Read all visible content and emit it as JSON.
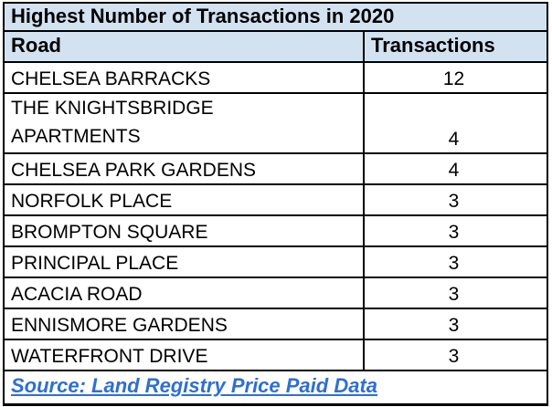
{
  "chart_data": {
    "type": "table",
    "title": "Highest Number of Transactions in 2020",
    "columns": [
      "Road",
      "Transactions"
    ],
    "rows": [
      [
        "CHELSEA BARRACKS",
        12
      ],
      [
        "THE KNIGHTSBRIDGE APARTMENTS",
        4
      ],
      [
        "CHELSEA PARK GARDENS",
        4
      ],
      [
        "NORFOLK PLACE",
        3
      ],
      [
        "BROMPTON SQUARE",
        3
      ],
      [
        "PRINCIPAL PLACE",
        3
      ],
      [
        "ACACIA ROAD",
        3
      ],
      [
        "ENNISMORE GARDENS",
        3
      ],
      [
        "WATERFRONT DRIVE",
        3
      ]
    ],
    "source": "Source: Land Registry Price Paid Data",
    "layout": {
      "header_fill": true,
      "grid": true,
      "value_alignment": "center"
    }
  },
  "colors": {
    "header_bg": "#D3E2F1",
    "body_bg": "#FFFFFF",
    "border": "#000000",
    "text": "#000000",
    "source_link": "#2E6FD2"
  }
}
